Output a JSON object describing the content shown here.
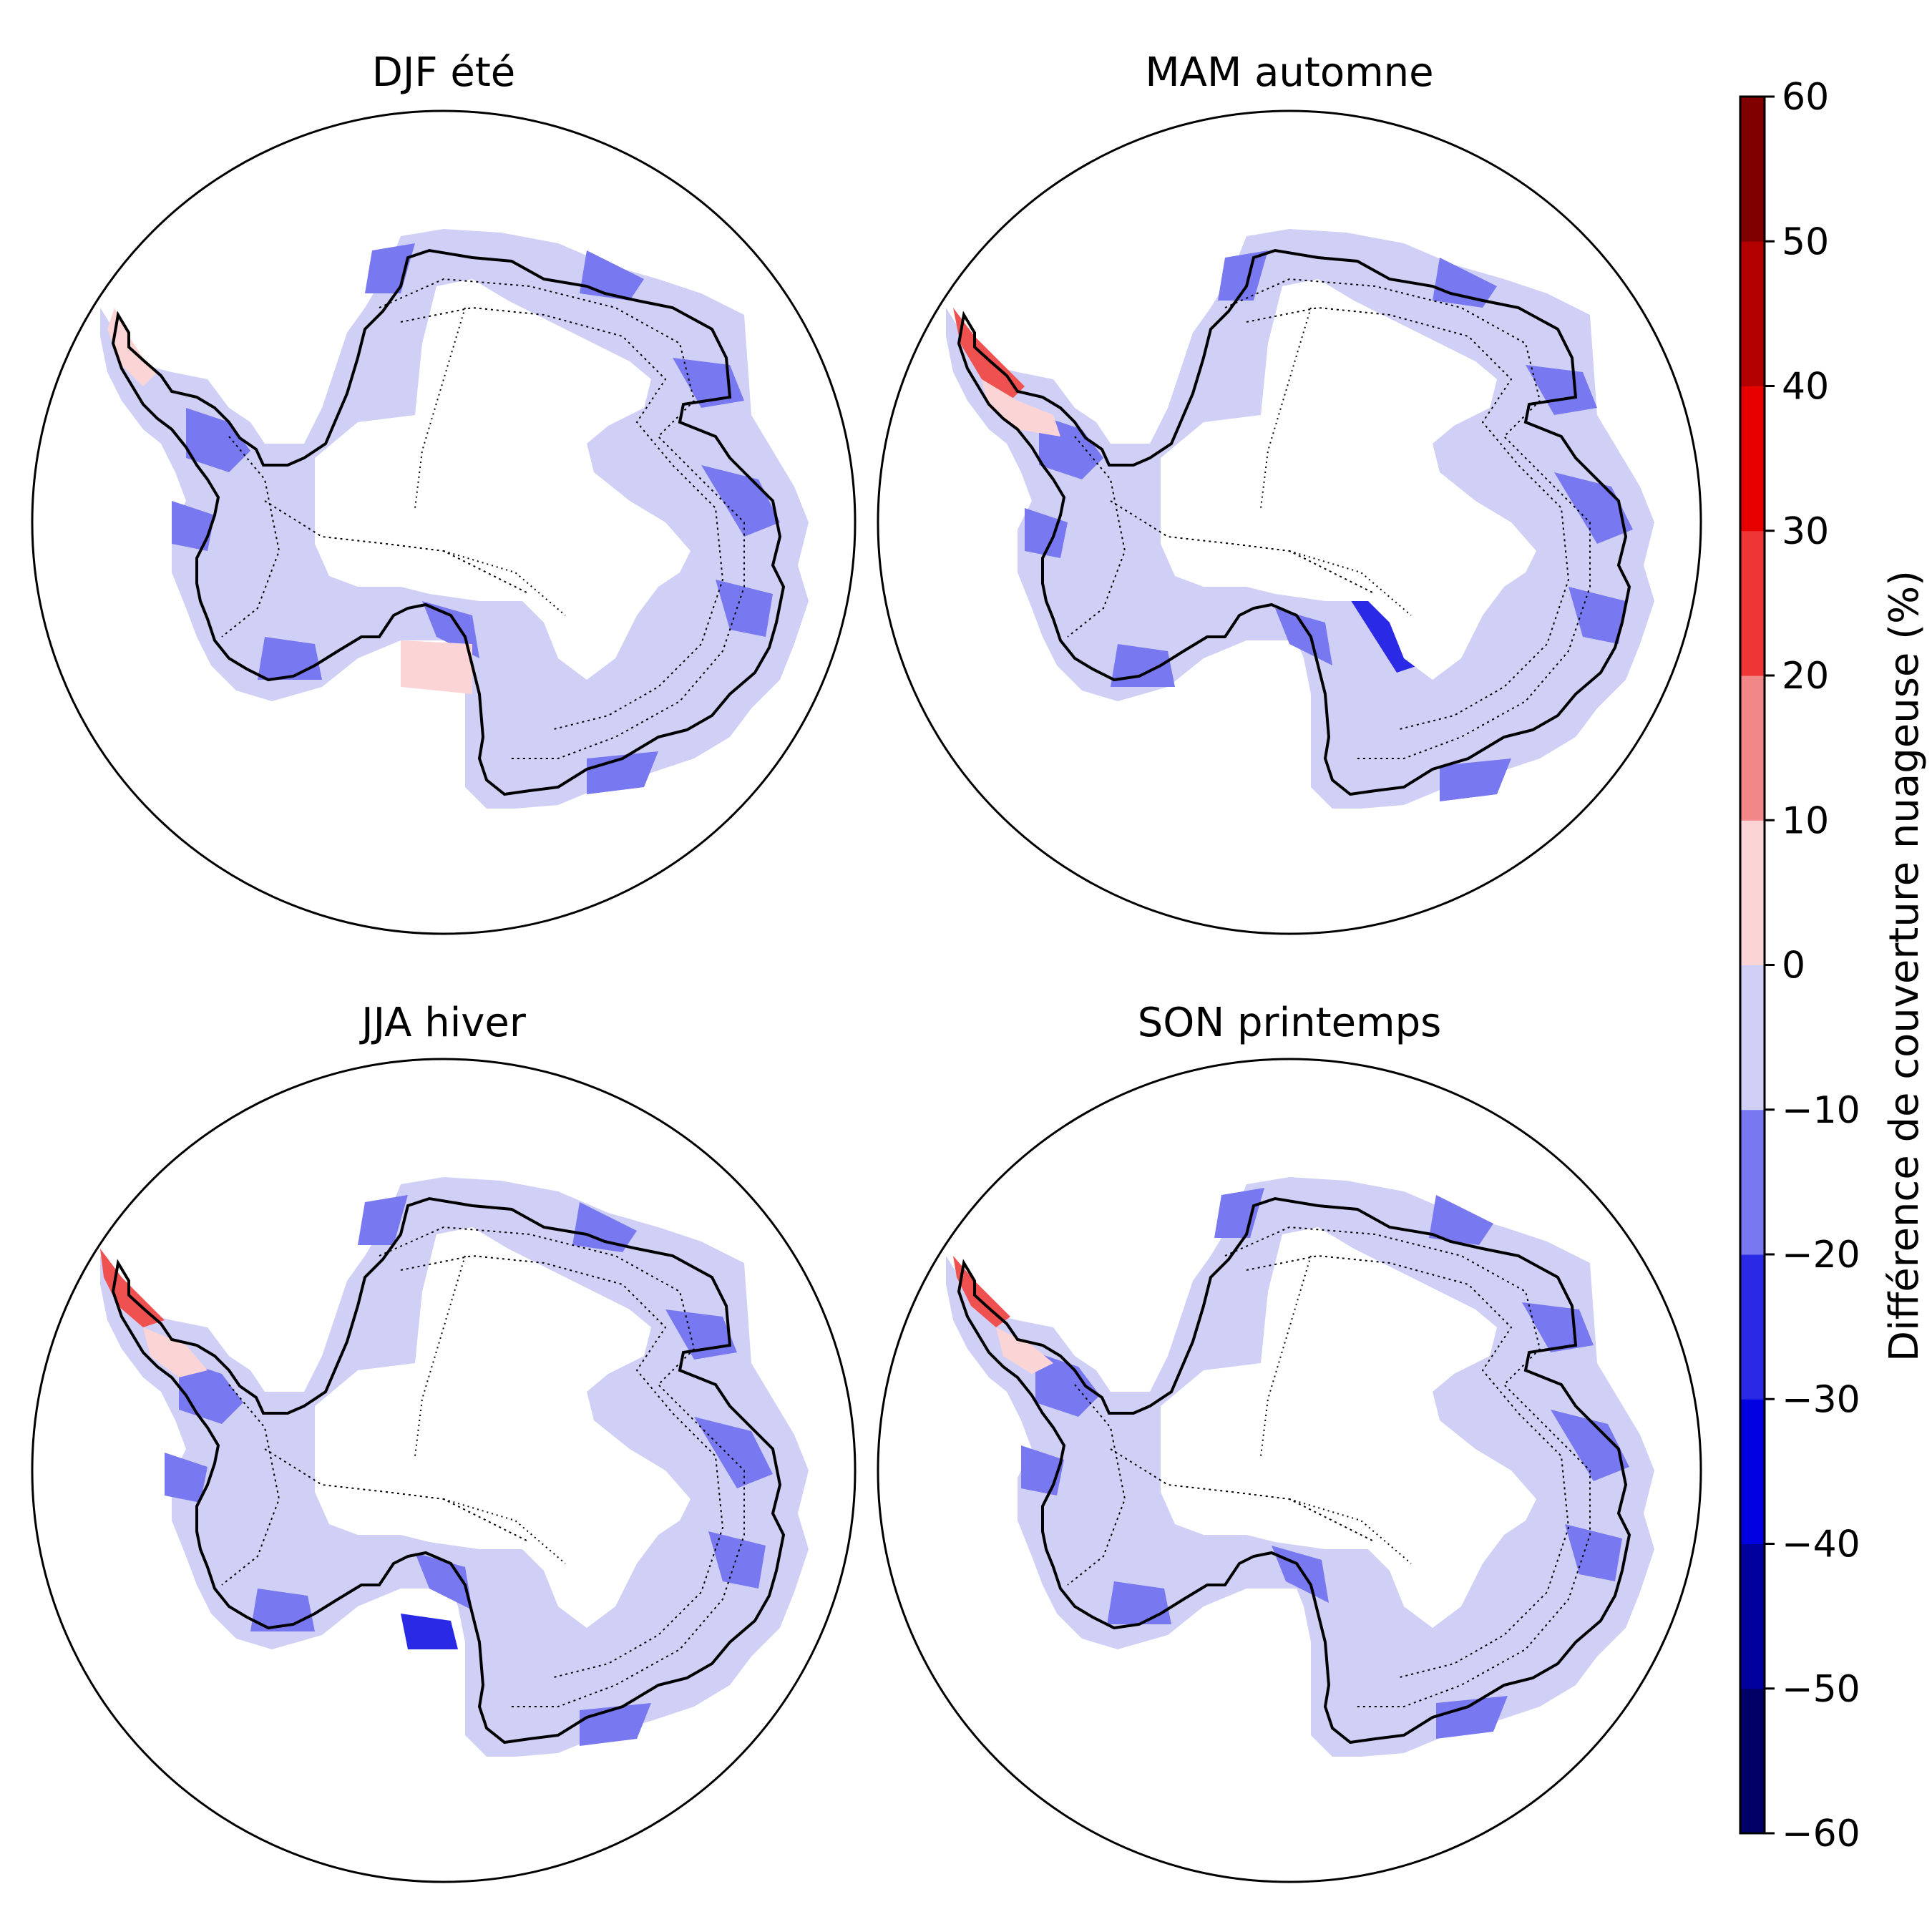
{
  "figure": {
    "panels": [
      {
        "title": "DJF été",
        "season": "DJF"
      },
      {
        "title": "MAM automne",
        "season": "MAM"
      },
      {
        "title": "JJA hiver",
        "season": "JJA"
      },
      {
        "title": "SON printemps",
        "season": "SON"
      }
    ],
    "colorbar": {
      "label": "Différence de couverture nuageuse (%)",
      "ticks": [
        "60",
        "50",
        "40",
        "30",
        "20",
        "10",
        "0",
        "−10",
        "−20",
        "−30",
        "−40",
        "−50",
        "−60"
      ],
      "levels": [
        -60,
        -50,
        -40,
        -30,
        -20,
        -10,
        0,
        10,
        20,
        30,
        40,
        50,
        60
      ],
      "colors": [
        "#000066",
        "#00009f",
        "#0000e0",
        "#2a2ae6",
        "#7878f0",
        "#d0d0f6",
        "#fbd5d5",
        "#f28787",
        "#ef3636",
        "#e80000",
        "#b30000",
        "#800000"
      ]
    },
    "map_colors": {
      "coast": "#000000",
      "land_interior": "#ffffff",
      "band_light_blue": "#d0d0f6",
      "band_blue": "#7878f0",
      "band_strong_blue": "#2a2ae6",
      "band_light_red": "#fbd5d5",
      "band_red": "#ef5050"
    }
  }
}
